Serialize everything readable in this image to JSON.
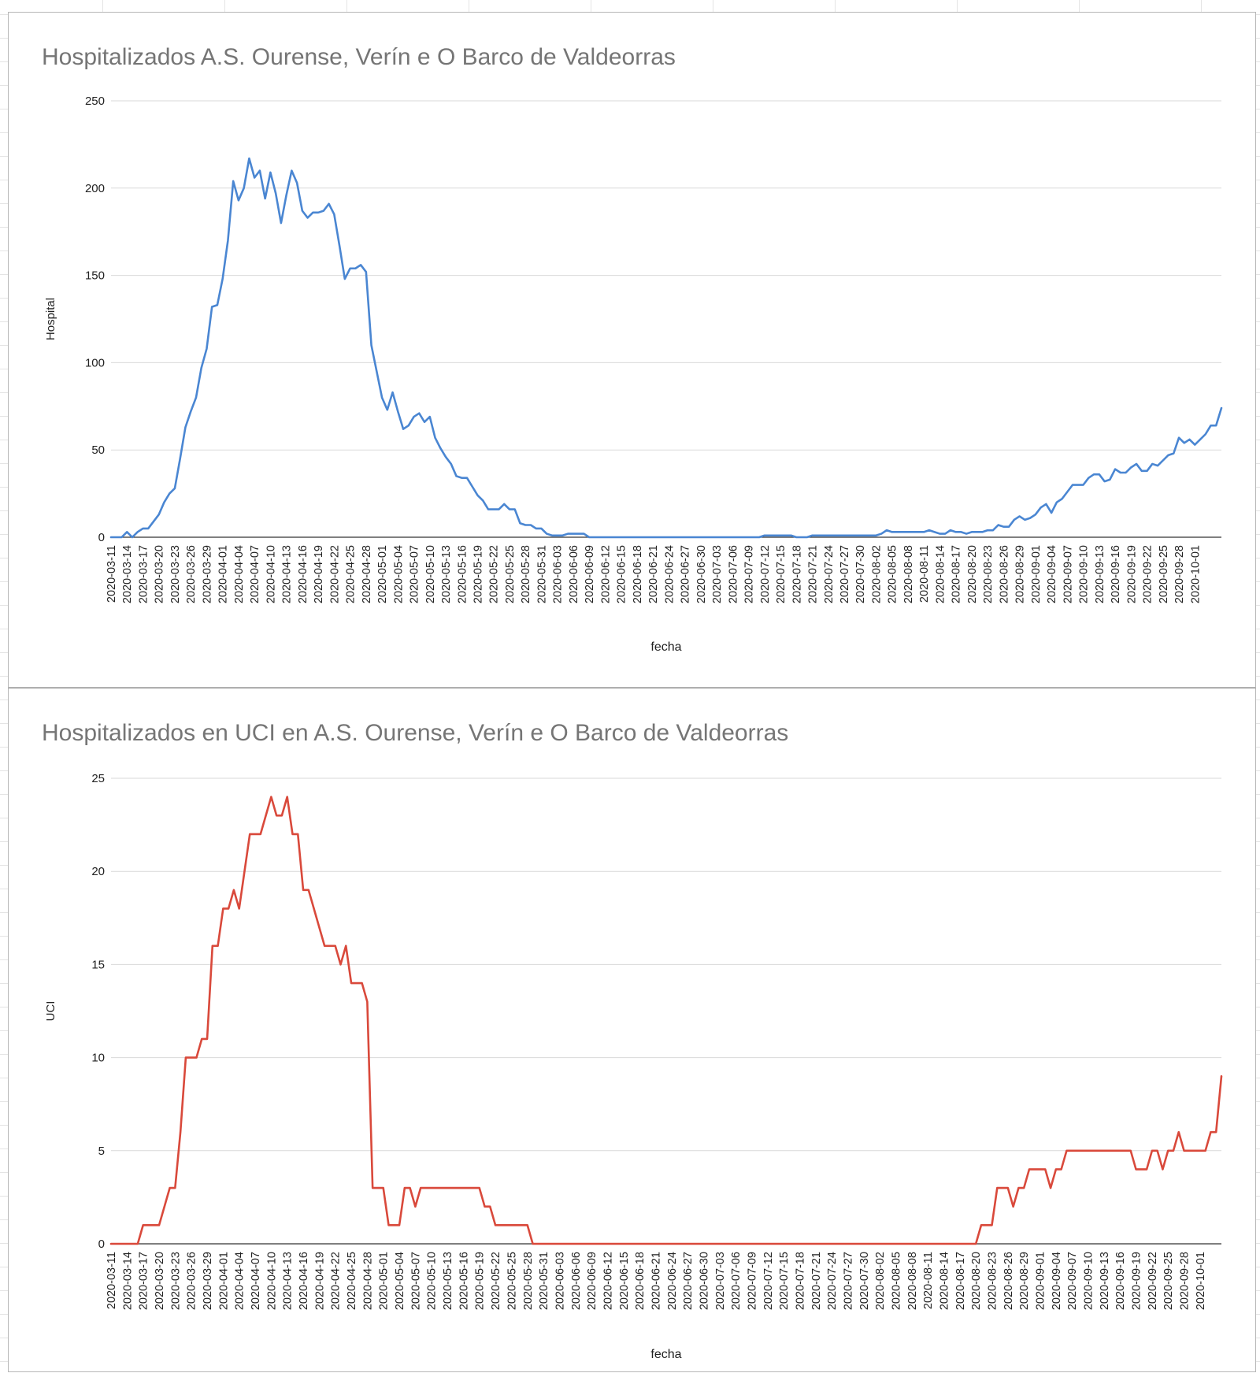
{
  "chart_data": [
    {
      "type": "line",
      "title": "Hospitalizados A.S. Ourense, Verín e O Barco de Valdeorras",
      "xlabel": "fecha",
      "ylabel": "Hospital",
      "ylim": [
        0,
        250
      ],
      "yticks": [
        0,
        50,
        100,
        150,
        200,
        250
      ],
      "grid": true,
      "color": "#4a86d2",
      "x_tick_labels": [
        "2020-03-11",
        "2020-03-14",
        "2020-03-17",
        "2020-03-20",
        "2020-03-23",
        "2020-03-26",
        "2020-03-29",
        "2020-04-01",
        "2020-04-04",
        "2020-04-07",
        "2020-04-10",
        "2020-04-13",
        "2020-04-16",
        "2020-04-19",
        "2020-04-22",
        "2020-04-25",
        "2020-04-28",
        "2020-05-01",
        "2020-05-04",
        "2020-05-07",
        "2020-05-10",
        "2020-05-13",
        "2020-05-16",
        "2020-05-19",
        "2020-05-22",
        "2020-05-25",
        "2020-05-28",
        "2020-05-31",
        "2020-06-03",
        "2020-06-06",
        "2020-06-09",
        "2020-06-12",
        "2020-06-15",
        "2020-06-18",
        "2020-06-21",
        "2020-06-24",
        "2020-06-27",
        "2020-06-30",
        "2020-07-03",
        "2020-07-06",
        "2020-07-09",
        "2020-07-12",
        "2020-07-15",
        "2020-07-18",
        "2020-07-21",
        "2020-07-24",
        "2020-07-27",
        "2020-07-30",
        "2020-08-02",
        "2020-08-05",
        "2020-08-08",
        "2020-08-11",
        "2020-08-14",
        "2020-08-17",
        "2020-08-20",
        "2020-08-23",
        "2020-08-26",
        "2020-08-29",
        "2020-09-01",
        "2020-09-04",
        "2020-09-07",
        "2020-09-10",
        "2020-09-13",
        "2020-09-16",
        "2020-09-19",
        "2020-09-22",
        "2020-09-25",
        "2020-09-28",
        "2020-10-01"
      ],
      "x_start": "2020-03-11",
      "values": [
        0,
        0,
        0,
        3,
        0,
        3,
        5,
        5,
        9,
        13,
        20,
        25,
        28,
        45,
        63,
        72,
        80,
        97,
        108,
        132,
        133,
        148,
        170,
        204,
        193,
        200,
        217,
        206,
        210,
        194,
        209,
        197,
        180,
        196,
        210,
        203,
        187,
        183,
        186,
        186,
        187,
        191,
        185,
        167,
        148,
        154,
        154,
        156,
        152,
        110,
        95,
        80,
        73,
        83,
        72,
        62,
        64,
        69,
        71,
        66,
        69,
        57,
        51,
        46,
        42,
        35,
        34,
        34,
        29,
        24,
        21,
        16,
        16,
        16,
        19,
        16,
        16,
        8,
        7,
        7,
        5,
        5,
        2,
        1,
        1,
        1,
        2,
        2,
        2,
        2,
        0,
        0,
        0,
        0,
        0,
        0,
        0,
        0,
        0,
        0,
        0,
        0,
        0,
        0,
        0,
        0,
        0,
        0,
        0,
        0,
        0,
        0,
        0,
        0,
        0,
        0,
        0,
        0,
        0,
        0,
        0,
        0,
        0,
        1,
        1,
        1,
        1,
        1,
        1,
        0,
        0,
        0,
        1,
        1,
        1,
        1,
        1,
        1,
        1,
        1,
        1,
        1,
        1,
        1,
        1,
        2,
        4,
        3,
        3,
        3,
        3,
        3,
        3,
        3,
        4,
        3,
        2,
        2,
        4,
        3,
        3,
        2,
        3,
        3,
        3,
        4,
        4,
        7,
        6,
        6,
        10,
        12,
        10,
        11,
        13,
        17,
        19,
        14,
        20,
        22,
        26,
        30,
        30,
        30,
        34,
        36,
        36,
        32,
        33,
        39,
        37,
        37,
        40,
        42,
        38,
        38,
        42,
        41,
        44,
        47,
        48,
        57,
        54,
        56,
        53,
        56,
        59,
        64,
        64,
        74
      ]
    },
    {
      "type": "line",
      "title": "Hospitalizados en UCI en A.S. Ourense, Verín e O Barco de Valdeorras",
      "xlabel": "fecha",
      "ylabel": "UCI",
      "ylim": [
        0,
        25
      ],
      "yticks": [
        0,
        5,
        10,
        15,
        20,
        25
      ],
      "grid": true,
      "color": "#d9493b",
      "x_tick_labels": [
        "2020-03-11",
        "2020-03-14",
        "2020-03-17",
        "2020-03-20",
        "2020-03-23",
        "2020-03-26",
        "2020-03-29",
        "2020-04-01",
        "2020-04-04",
        "2020-04-07",
        "2020-04-10",
        "2020-04-13",
        "2020-04-16",
        "2020-04-19",
        "2020-04-22",
        "2020-04-25",
        "2020-04-28",
        "2020-05-01",
        "2020-05-04",
        "2020-05-07",
        "2020-05-10",
        "2020-05-13",
        "2020-05-16",
        "2020-05-19",
        "2020-05-22",
        "2020-05-25",
        "2020-05-28",
        "2020-05-31",
        "2020-06-03",
        "2020-06-06",
        "2020-06-09",
        "2020-06-12",
        "2020-06-15",
        "2020-06-18",
        "2020-06-21",
        "2020-06-24",
        "2020-06-27",
        "2020-06-30",
        "2020-07-03",
        "2020-07-06",
        "2020-07-09",
        "2020-07-12",
        "2020-07-15",
        "2020-07-18",
        "2020-07-21",
        "2020-07-24",
        "2020-07-27",
        "2020-07-30",
        "2020-08-02",
        "2020-08-05",
        "2020-08-08",
        "2020-08-11",
        "2020-08-14",
        "2020-08-17",
        "2020-08-20",
        "2020-08-23",
        "2020-08-26",
        "2020-08-29",
        "2020-09-01",
        "2020-09-04",
        "2020-09-07",
        "2020-09-10",
        "2020-09-13",
        "2020-09-16",
        "2020-09-19",
        "2020-09-22",
        "2020-09-25",
        "2020-09-28",
        "2020-10-01"
      ],
      "x_start": "2020-03-11",
      "values": [
        0,
        0,
        0,
        0,
        0,
        0,
        1,
        1,
        1,
        1,
        2,
        3,
        3,
        6,
        10,
        10,
        10,
        11,
        11,
        16,
        16,
        18,
        18,
        19,
        18,
        20,
        22,
        22,
        22,
        23,
        24,
        23,
        23,
        24,
        22,
        22,
        19,
        19,
        18,
        17,
        16,
        16,
        16,
        15,
        16,
        14,
        14,
        14,
        13,
        3,
        3,
        3,
        1,
        1,
        1,
        3,
        3,
        2,
        3,
        3,
        3,
        3,
        3,
        3,
        3,
        3,
        3,
        3,
        3,
        3,
        2,
        2,
        1,
        1,
        1,
        1,
        1,
        1,
        1,
        0,
        0,
        0,
        0,
        0,
        0,
        0,
        0,
        0,
        0,
        0,
        0,
        0,
        0,
        0,
        0,
        0,
        0,
        0,
        0,
        0,
        0,
        0,
        0,
        0,
        0,
        0,
        0,
        0,
        0,
        0,
        0,
        0,
        0,
        0,
        0,
        0,
        0,
        0,
        0,
        0,
        0,
        0,
        0,
        0,
        0,
        0,
        0,
        0,
        0,
        0,
        0,
        0,
        0,
        0,
        0,
        0,
        0,
        0,
        0,
        0,
        0,
        0,
        0,
        0,
        0,
        0,
        0,
        0,
        0,
        0,
        0,
        0,
        0,
        0,
        0,
        0,
        0,
        0,
        0,
        0,
        0,
        0,
        0,
        1,
        1,
        1,
        3,
        3,
        3,
        2,
        3,
        3,
        4,
        4,
        4,
        4,
        3,
        4,
        4,
        5,
        5,
        5,
        5,
        5,
        5,
        5,
        5,
        5,
        5,
        5,
        5,
        5,
        4,
        4,
        4,
        5,
        5,
        4,
        5,
        5,
        6,
        5,
        5,
        5,
        5,
        5,
        6,
        6,
        9
      ]
    }
  ]
}
